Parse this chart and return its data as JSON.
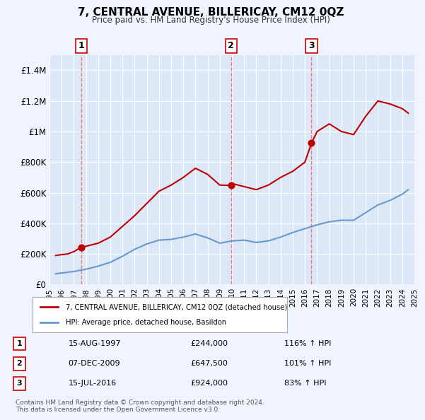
{
  "title": "7, CENTRAL AVENUE, BILLERICAY, CM12 0QZ",
  "subtitle": "Price paid vs. HM Land Registry's House Price Index (HPI)",
  "ylabel": "",
  "bg_color": "#f0f4ff",
  "plot_bg_color": "#dce8f8",
  "grid_color": "#ffffff",
  "red_line_color": "#c00000",
  "blue_line_color": "#6699cc",
  "dashed_line_color": "#ff6666",
  "legend_label_red": "7, CENTRAL AVENUE, BILLERICAY, CM12 0QZ (detached house)",
  "legend_label_blue": "HPI: Average price, detached house, Basildon",
  "transactions": [
    {
      "label": "1",
      "date": "15-AUG-1997",
      "price": 244000,
      "pct": "116%",
      "dir": "↑",
      "year": 1997.62
    },
    {
      "label": "2",
      "date": "07-DEC-2009",
      "price": 647500,
      "pct": "101%",
      "dir": "↑",
      "year": 2009.93
    },
    {
      "label": "3",
      "date": "15-JUL-2016",
      "price": 924000,
      "pct": "83%",
      "dir": "↑",
      "year": 2016.54
    }
  ],
  "footer": "Contains HM Land Registry data © Crown copyright and database right 2024.\nThis data is licensed under the Open Government Licence v3.0.",
  "ylim": [
    0,
    1500000
  ],
  "yticks": [
    0,
    200000,
    400000,
    600000,
    800000,
    1000000,
    1200000,
    1400000
  ],
  "ytick_labels": [
    "£0",
    "£200K",
    "£400K",
    "£600K",
    "£800K",
    "£1M",
    "£1.2M",
    "£1.4M"
  ],
  "red_line_data": {
    "years": [
      1995.5,
      1996.0,
      1996.5,
      1997.0,
      1997.62,
      1998.0,
      1999.0,
      2000.0,
      2001.0,
      2002.0,
      2003.0,
      2004.0,
      2005.0,
      2006.0,
      2007.0,
      2008.0,
      2009.0,
      2009.93,
      2010.0,
      2011.0,
      2012.0,
      2013.0,
      2014.0,
      2015.0,
      2016.0,
      2016.54,
      2017.0,
      2018.0,
      2019.0,
      2020.0,
      2021.0,
      2022.0,
      2023.0,
      2024.0,
      2024.5
    ],
    "values": [
      190000,
      195000,
      200000,
      215000,
      244000,
      250000,
      270000,
      310000,
      380000,
      450000,
      530000,
      610000,
      650000,
      700000,
      760000,
      720000,
      650000,
      647500,
      660000,
      640000,
      620000,
      650000,
      700000,
      740000,
      800000,
      924000,
      1000000,
      1050000,
      1000000,
      980000,
      1100000,
      1200000,
      1180000,
      1150000,
      1120000
    ]
  },
  "blue_line_data": {
    "years": [
      1995.5,
      1996.0,
      1997.0,
      1998.0,
      1999.0,
      2000.0,
      2001.0,
      2002.0,
      2003.0,
      2004.0,
      2005.0,
      2006.0,
      2007.0,
      2008.0,
      2009.0,
      2010.0,
      2011.0,
      2012.0,
      2013.0,
      2014.0,
      2015.0,
      2016.0,
      2017.0,
      2018.0,
      2019.0,
      2020.0,
      2021.0,
      2022.0,
      2023.0,
      2024.0,
      2024.5
    ],
    "values": [
      70000,
      75000,
      85000,
      100000,
      120000,
      145000,
      185000,
      230000,
      265000,
      290000,
      295000,
      310000,
      330000,
      305000,
      270000,
      285000,
      290000,
      275000,
      285000,
      310000,
      340000,
      365000,
      390000,
      410000,
      420000,
      420000,
      470000,
      520000,
      550000,
      590000,
      620000
    ]
  }
}
